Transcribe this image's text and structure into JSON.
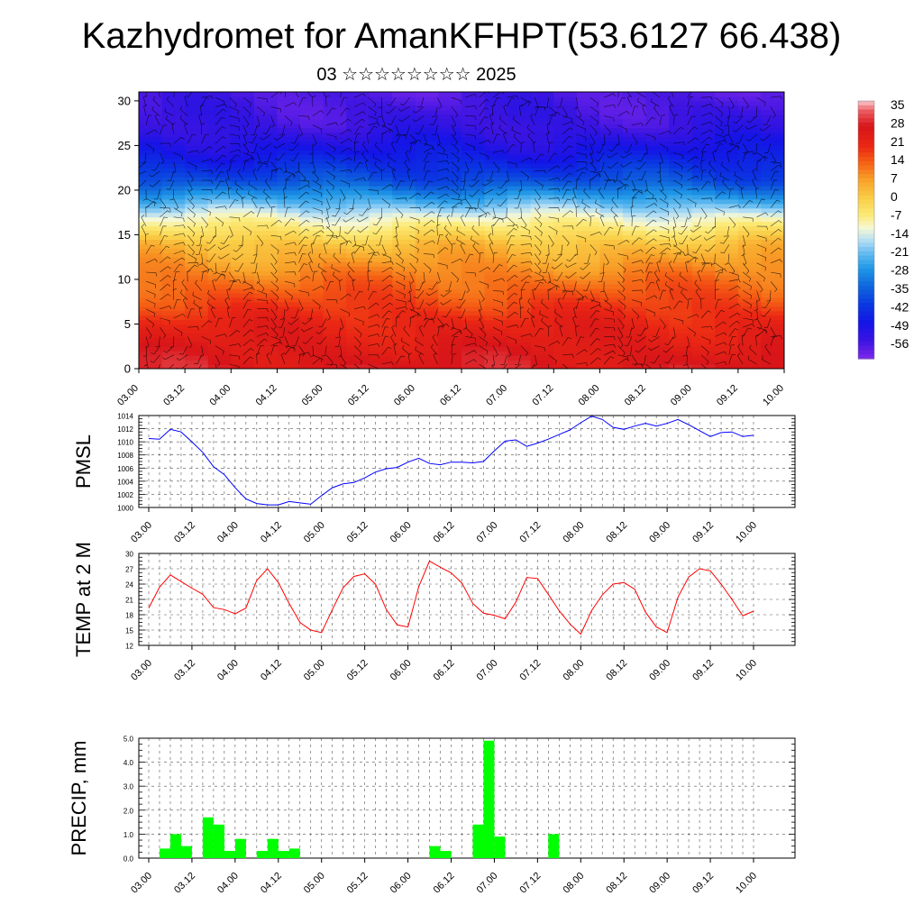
{
  "title": "Kazhydromet for AmanKFHPT(53.6127 66.438)",
  "subtitle": "03 ☆☆☆☆☆☆☆☆ 2025",
  "time_labels": [
    "03.00",
    "03.12",
    "04.00",
    "04.12",
    "05.00",
    "05.12",
    "06.00",
    "06.12",
    "07.00",
    "07.12",
    "08.00",
    "08.12",
    "09.00",
    "09.12",
    "10.00"
  ],
  "chart_data": [
    {
      "type": "heatmap",
      "title": "",
      "xlabel": "",
      "ylabel": "",
      "x_ticks": [
        "03.00",
        "03.12",
        "04.00",
        "04.12",
        "05.00",
        "05.12",
        "06.00",
        "06.12",
        "07.00",
        "07.12",
        "08.00",
        "08.12",
        "09.00",
        "09.12",
        "10.00"
      ],
      "y_ticks": [
        0,
        5,
        10,
        15,
        20,
        25,
        30
      ],
      "ylim": [
        0,
        31
      ],
      "colorbar_labels": [
        35,
        28,
        21,
        14,
        7,
        0,
        -7,
        -14,
        -21,
        -28,
        -35,
        -42,
        -49,
        -56
      ],
      "colorbar_range": [
        -63,
        38
      ],
      "overlay": "wind barbs",
      "vertical_profile": [
        {
          "level": 0,
          "value": 28
        },
        {
          "level": 5,
          "value": 22
        },
        {
          "level": 10,
          "value": 12
        },
        {
          "level": 14,
          "value": 2
        },
        {
          "level": 17,
          "value": -12
        },
        {
          "level": 19,
          "value": -25
        },
        {
          "level": 21,
          "value": -38
        },
        {
          "level": 24,
          "value": -48
        },
        {
          "level": 27,
          "value": -55
        },
        {
          "level": 31,
          "value": -58
        }
      ]
    },
    {
      "type": "line",
      "title": "",
      "ylabel": "PMSL",
      "ylim": [
        1000,
        1014
      ],
      "y_ticks": [
        1000,
        1002,
        1004,
        1006,
        1008,
        1010,
        1012,
        1014
      ],
      "x_ticks": [
        "03.00",
        "03.12",
        "04.00",
        "04.12",
        "05.00",
        "05.12",
        "06.00",
        "06.12",
        "07.00",
        "07.12",
        "08.00",
        "08.12",
        "09.00",
        "09.12",
        "10.00"
      ],
      "color": "#0000ff",
      "x_hours": [
        0,
        3,
        6,
        9,
        12,
        15,
        18,
        21,
        24,
        27,
        30,
        33,
        36,
        39,
        42,
        45,
        48,
        51,
        54,
        57,
        60,
        63,
        66,
        69,
        72,
        75,
        78,
        81,
        84,
        87,
        90,
        93,
        96,
        99,
        102,
        105,
        108,
        111,
        114,
        117,
        120,
        123,
        126,
        129,
        132,
        135,
        138,
        141,
        144,
        147,
        150,
        153,
        156,
        159,
        162,
        165,
        168
      ],
      "values": [
        1010.5,
        1010.4,
        1011.9,
        1011.5,
        1010.0,
        1008.4,
        1006.2,
        1005.0,
        1003.0,
        1001.3,
        1000.6,
        1000.4,
        1000.4,
        1000.9,
        1000.7,
        1000.5,
        1001.8,
        1003.0,
        1003.6,
        1003.8,
        1004.5,
        1005.4,
        1005.9,
        1006.1,
        1006.9,
        1007.5,
        1006.7,
        1006.5,
        1006.9,
        1006.9,
        1006.8,
        1007.0,
        1008.6,
        1010.1,
        1010.3,
        1009.3,
        1009.8,
        1010.4,
        1011.1,
        1011.8,
        1012.9,
        1013.9,
        1013.4,
        1012.2,
        1011.9,
        1012.4,
        1012.8,
        1012.4,
        1012.8,
        1013.4,
        1012.6,
        1011.7,
        1010.8,
        1011.4,
        1011.5,
        1010.8,
        1011.0
      ]
    },
    {
      "type": "line",
      "title": "",
      "ylabel": "TEMP at 2 M",
      "ylim": [
        12,
        30
      ],
      "y_ticks": [
        12,
        15,
        18,
        21,
        24,
        27,
        30
      ],
      "x_ticks": [
        "03.00",
        "03.12",
        "04.00",
        "04.12",
        "05.00",
        "05.12",
        "06.00",
        "06.12",
        "07.00",
        "07.12",
        "08.00",
        "08.12",
        "09.00",
        "09.12",
        "10.00"
      ],
      "color": "#ff0000",
      "x_hours": [
        0,
        3,
        6,
        9,
        12,
        15,
        18,
        21,
        24,
        27,
        30,
        33,
        36,
        39,
        42,
        45,
        48,
        51,
        54,
        57,
        60,
        63,
        66,
        69,
        72,
        75,
        78,
        81,
        84,
        87,
        90,
        93,
        96,
        99,
        102,
        105,
        108,
        111,
        114,
        117,
        120,
        123,
        126,
        129,
        132,
        135,
        138,
        141,
        144,
        147,
        150,
        153,
        156,
        159,
        162,
        165,
        168
      ],
      "values": [
        19.3,
        23.4,
        25.8,
        24.5,
        23.2,
        22.0,
        19.4,
        19.0,
        18.2,
        19.3,
        24.7,
        27.0,
        24.3,
        20.2,
        16.5,
        15.0,
        14.5,
        19.0,
        23.3,
        25.5,
        26.0,
        24.0,
        19.0,
        16.0,
        15.6,
        23.5,
        28.5,
        27.3,
        26.2,
        24.2,
        20.2,
        18.3,
        17.9,
        17.2,
        20.5,
        25.3,
        25.1,
        22.0,
        18.8,
        16.2,
        14.2,
        18.8,
        21.9,
        24.0,
        24.3,
        23.0,
        18.5,
        15.6,
        14.5,
        21.4,
        25.4,
        27.0,
        26.6,
        24.0,
        21.0,
        17.8,
        18.7
      ]
    },
    {
      "type": "bar",
      "title": "",
      "ylabel": "PRECIP, mm",
      "ylim": [
        0,
        5
      ],
      "y_ticks": [
        "0.0",
        "1.0",
        "2.0",
        "3.0",
        "4.0",
        "5.0"
      ],
      "x_ticks": [
        "03.00",
        "03.12",
        "04.00",
        "04.12",
        "05.00",
        "05.12",
        "06.00",
        "06.12",
        "07.00",
        "07.12",
        "08.00",
        "08.12",
        "09.00",
        "09.12",
        "10.00"
      ],
      "color": "#00ff00",
      "x_hours": [
        6,
        9,
        12,
        15,
        18,
        21,
        24,
        27,
        30,
        33,
        36,
        39,
        42,
        45,
        48,
        51,
        54,
        57,
        60,
        63,
        66,
        69,
        72,
        75,
        78,
        81,
        84,
        87,
        90,
        93,
        96,
        99,
        102,
        105,
        108,
        111,
        114,
        117,
        120,
        123,
        126,
        129,
        132,
        135,
        138,
        141,
        144,
        147,
        150,
        153,
        156,
        159,
        162,
        165,
        168
      ],
      "values": [
        0.4,
        1.0,
        0.5,
        0.0,
        1.7,
        1.4,
        0.3,
        0.8,
        0.0,
        0.3,
        0.8,
        0.3,
        0.4,
        0.0,
        0,
        0,
        0,
        0,
        0,
        0,
        0,
        0,
        0,
        0,
        0,
        0.5,
        0.3,
        0.0,
        0.0,
        1.4,
        4.9,
        0.9,
        0.0,
        0,
        0,
        0,
        1.0,
        0.0,
        0,
        0,
        0,
        0,
        0,
        0,
        0,
        0,
        0,
        0,
        0,
        0,
        0,
        0,
        0,
        0,
        0
      ]
    }
  ]
}
